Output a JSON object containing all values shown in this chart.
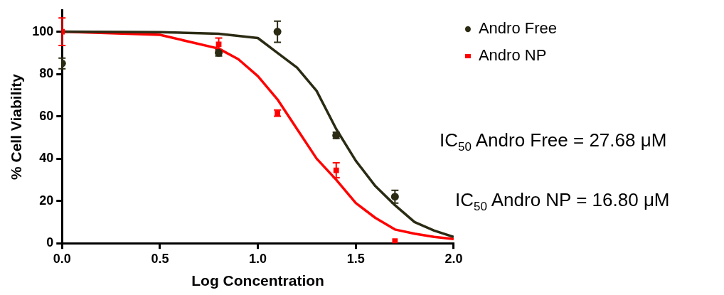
{
  "chart_data": {
    "type": "scatter",
    "xlabel": "Log Concentration",
    "ylabel": "% Cell Viability",
    "xlim": [
      0,
      2
    ],
    "xticks": [
      {
        "value": 0,
        "label": "0.0"
      },
      {
        "value": 0.5,
        "label": "0.5"
      },
      {
        "value": 1,
        "label": "1.0"
      },
      {
        "value": 1.5,
        "label": "1.5"
      },
      {
        "value": 2,
        "label": "2.0"
      }
    ],
    "ylim": [
      0,
      110
    ],
    "yticks": [
      0,
      20,
      40,
      60,
      80,
      100
    ],
    "grid": false,
    "legend": "top right",
    "annotations": [
      "IC$_{50}$ Andro Free = 27.68 μM",
      "IC$_{50}$ Andro NP = 16.80 μM"
    ],
    "series": [
      {
        "name": "Andro Free",
        "marker": "circle",
        "color": "#2b2b14",
        "x": [
          0,
          0.8,
          1.1,
          1.4,
          1.7
        ],
        "values": [
          85,
          90,
          100,
          51,
          22
        ],
        "errors": [
          2.5,
          1.5,
          5,
          1.5,
          3
        ]
      },
      {
        "name": "Andro NP",
        "marker": "square",
        "color": "#ff0000",
        "x": [
          0,
          0.8,
          1.1,
          1.4,
          1.7
        ],
        "values": [
          100,
          94,
          61.5,
          34.5,
          1
        ],
        "errors": [
          6.5,
          3,
          1.5,
          3.5,
          null
        ]
      },
      {
        "type": "line",
        "marker": "none",
        "color": "#2b2b14",
        "x": [
          0,
          0.5,
          0.8,
          1.0,
          1.1,
          1.2,
          1.3,
          1.4,
          1.5,
          1.6,
          1.7,
          1.8,
          1.9,
          2.0
        ],
        "values": [
          100,
          99.8,
          99,
          97,
          90,
          83,
          72,
          54,
          39,
          27,
          18,
          10,
          6,
          3
        ]
      },
      {
        "type": "line",
        "marker": "none",
        "color": "#ff0000",
        "x": [
          0,
          0.5,
          0.8,
          0.9,
          1.0,
          1.1,
          1.2,
          1.3,
          1.4,
          1.5,
          1.6,
          1.7,
          1.8,
          1.9,
          2.0
        ],
        "values": [
          100,
          98.5,
          92,
          87,
          79,
          68,
          54,
          40,
          30,
          19,
          12,
          6.5,
          4.5,
          3,
          2
        ]
      }
    ]
  }
}
